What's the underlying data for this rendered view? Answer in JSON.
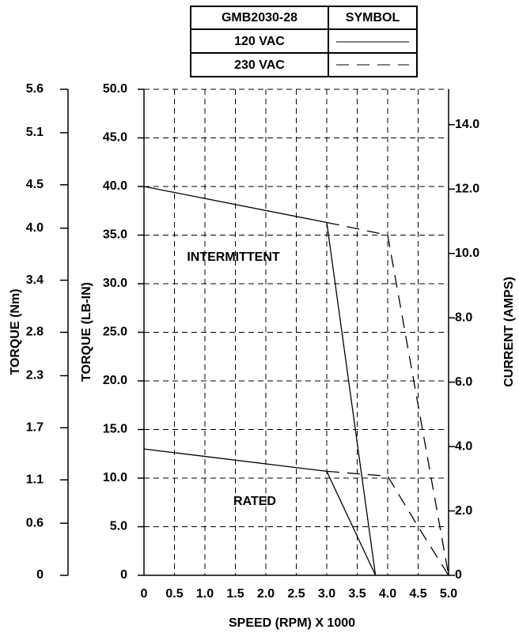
{
  "chart_data": {
    "type": "line",
    "legend_title": "GMB2030-28",
    "legend_symbol_header": "SYMBOL",
    "xlabel": "SPEED (RPM) X 1000",
    "ylabel": "TORQUE (LB-IN)",
    "y3label": "TORQUE (Nm)",
    "y2label": "CURRENT (AMPS)",
    "annotations": [
      "INTERMITTENT",
      "RATED"
    ],
    "grid": true,
    "xlim": [
      0,
      5
    ],
    "xticks": [
      0,
      0.5,
      {
        "value": 1,
        "label": "1.0"
      },
      1.5,
      {
        "value": 2,
        "label": "2.0"
      },
      2.5,
      {
        "value": 3,
        "label": "3.0"
      },
      3.5,
      {
        "value": 4,
        "label": "4.0"
      },
      4.5,
      {
        "value": 5,
        "label": "5.0"
      }
    ],
    "ylim": [
      0,
      50
    ],
    "yticks": [
      0,
      {
        "value": 5,
        "label": "5.0"
      },
      {
        "value": 10,
        "label": "10.0"
      },
      {
        "value": 15,
        "label": "15.0"
      },
      {
        "value": 20,
        "label": "20.0"
      },
      {
        "value": 25,
        "label": "25.0"
      },
      {
        "value": 30,
        "label": "30.0"
      },
      {
        "value": 35,
        "label": "35.0"
      },
      {
        "value": 40,
        "label": "40.0"
      },
      {
        "value": 45,
        "label": "45.0"
      },
      {
        "value": 50,
        "label": "50.0"
      }
    ],
    "y3lim": [
      0,
      5.6
    ],
    "y3ticks": [
      0,
      0.6,
      1.1,
      1.7,
      2.3,
      2.8,
      3.4,
      {
        "value": 4,
        "label": "4.0"
      },
      4.5,
      5.1,
      5.6
    ],
    "y2lim": [
      0,
      15.1
    ],
    "y2ticks": [
      0,
      {
        "value": 2,
        "label": "2.0"
      },
      {
        "value": 4,
        "label": "4.0"
      },
      {
        "value": 6,
        "label": "6.0"
      },
      {
        "value": 8,
        "label": "8.0"
      },
      {
        "value": 10,
        "label": "10.0"
      },
      {
        "value": 12,
        "label": "12.0"
      },
      {
        "value": 14,
        "label": "14.0"
      }
    ],
    "series": [
      {
        "name": "120 VAC",
        "color": "#000000",
        "dash": "solid",
        "segments": [
          {
            "x": [
              0,
              3.0,
              3.8
            ],
            "values": [
              40,
              36.3,
              0
            ]
          },
          {
            "x": [
              0,
              3.0,
              3.8
            ],
            "values": [
              13,
              10.7,
              0
            ]
          }
        ]
      },
      {
        "name": "230 VAC",
        "color": "#000000",
        "dash": "dashed",
        "segments": [
          {
            "x": [
              3.0,
              4.0,
              5.0
            ],
            "values": [
              36.3,
              35,
              0
            ]
          },
          {
            "x": [
              3.0,
              4.0,
              4.5,
              5.0
            ],
            "values": [
              10.7,
              10.2,
              5,
              0
            ]
          }
        ]
      }
    ]
  }
}
